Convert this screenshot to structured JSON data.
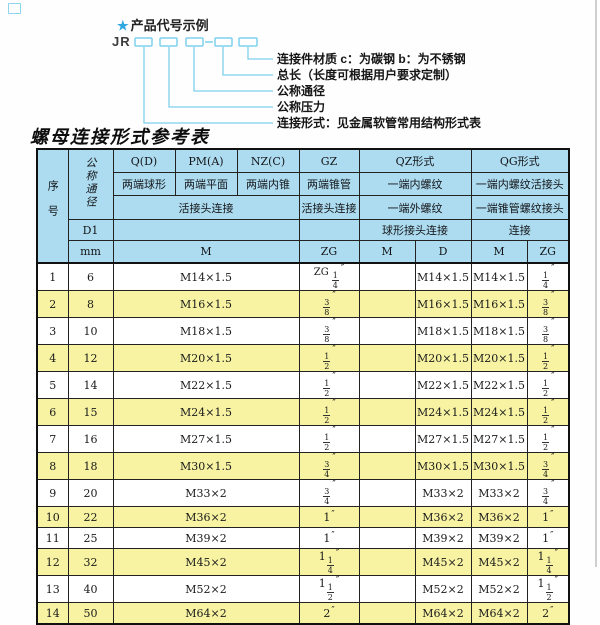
{
  "diagram": {
    "star": "★",
    "title": "产品代号示例",
    "code_prefix": "JR",
    "labels": [
      "连接件材质  c：为碳钢  b：为不锈钢",
      "总长（长度可根据用户要求定制）",
      "公称通径",
      "公称压力",
      "连接形式：见金属软管常用结构形式表"
    ]
  },
  "table": {
    "title": "螺母连接形式参考表",
    "header": {
      "seq": "序号",
      "dn": "公称通径",
      "d1": "D1",
      "mm": "mm",
      "col_q": "Q(D)",
      "col_pm": "PM(A)",
      "col_nz": "NZ(C)",
      "col_gz": "GZ",
      "col_qz": "QZ形式",
      "col_qg": "QG形式",
      "q_desc": "两端球形",
      "pm_desc": "两端平面",
      "nz_desc": "两端内锥",
      "gz_desc": "两端锥管",
      "qz_desc1": "一端内螺纹",
      "qg_desc1": "一端内螺纹活接头",
      "union_conn": "活接头连接",
      "gz_conn": "活接头连接",
      "qz_desc2": "一端外螺纹",
      "qg_desc2": "一端锥管螺纹接头",
      "qz_conn": "球形接头连接",
      "qg_conn": "连接",
      "m_main": "M",
      "zg_gz": "ZG",
      "qz_m": "M",
      "qz_d": "D",
      "qg_m": "M",
      "qg_zg": "ZG"
    },
    "rows": [
      {
        "no": "1",
        "dn": "6",
        "m": "M14×1.5",
        "gz": {
          "pre": "ZG",
          "num": "1",
          "den": "4"
        },
        "qzm": "",
        "qzd": "M14×1.5",
        "qgm": "M14×1.5",
        "qg": {
          "num": "1",
          "den": "4"
        }
      },
      {
        "no": "2",
        "dn": "8",
        "m": "M16×1.5",
        "gz": {
          "num": "3",
          "den": "8"
        },
        "qzm": "",
        "qzd": "M16×1.5",
        "qgm": "M16×1.5",
        "qg": {
          "num": "3",
          "den": "8"
        }
      },
      {
        "no": "3",
        "dn": "10",
        "m": "M18×1.5",
        "gz": {
          "num": "3",
          "den": "8"
        },
        "qzm": "",
        "qzd": "M18×1.5",
        "qgm": "M18×1.5",
        "qg": {
          "num": "3",
          "den": "8"
        }
      },
      {
        "no": "4",
        "dn": "12",
        "m": "M20×1.5",
        "gz": {
          "num": "1",
          "den": "2"
        },
        "qzm": "",
        "qzd": "M20×1.5",
        "qgm": "M20×1.5",
        "qg": {
          "num": "1",
          "den": "2"
        }
      },
      {
        "no": "5",
        "dn": "14",
        "m": "M22×1.5",
        "gz": {
          "num": "1",
          "den": "2"
        },
        "qzm": "",
        "qzd": "M22×1.5",
        "qgm": "M22×1.5",
        "qg": {
          "num": "1",
          "den": "2"
        }
      },
      {
        "no": "6",
        "dn": "15",
        "m": "M24×1.5",
        "gz": {
          "num": "1",
          "den": "2"
        },
        "qzm": "",
        "qzd": "M24×1.5",
        "qgm": "M24×1.5",
        "qg": {
          "num": "1",
          "den": "2"
        }
      },
      {
        "no": "7",
        "dn": "16",
        "m": "M27×1.5",
        "gz": {
          "num": "1",
          "den": "2"
        },
        "qzm": "",
        "qzd": "M27×1.5",
        "qgm": "M27×1.5",
        "qg": {
          "num": "1",
          "den": "2"
        }
      },
      {
        "no": "8",
        "dn": "18",
        "m": "M30×1.5",
        "gz": {
          "num": "3",
          "den": "4"
        },
        "qzm": "",
        "qzd": "M30×1.5",
        "qgm": "M30×1.5",
        "qg": {
          "num": "3",
          "den": "4"
        }
      },
      {
        "no": "9",
        "dn": "20",
        "m": "M33×2",
        "gz": {
          "num": "3",
          "den": "4"
        },
        "qzm": "",
        "qzd": "M33×2",
        "qgm": "M33×2",
        "qg": {
          "num": "3",
          "den": "4"
        }
      },
      {
        "no": "10",
        "dn": "22",
        "m": "M36×2",
        "gz": {
          "whole": "1"
        },
        "qzm": "",
        "qzd": "M36×2",
        "qgm": "M36×2",
        "qg": {
          "whole": "1"
        }
      },
      {
        "no": "11",
        "dn": "25",
        "m": "M39×2",
        "gz": {
          "whole": "1"
        },
        "qzm": "",
        "qzd": "M39×2",
        "qgm": "M39×2",
        "qg": {
          "whole": "1"
        }
      },
      {
        "no": "12",
        "dn": "32",
        "m": "M45×2",
        "gz": {
          "whole": "1",
          "num": "1",
          "den": "4"
        },
        "qzm": "",
        "qzd": "M45×2",
        "qgm": "M45×2",
        "qg": {
          "whole": "1",
          "num": "1",
          "den": "4"
        }
      },
      {
        "no": "13",
        "dn": "40",
        "m": "M52×2",
        "gz": {
          "whole": "1",
          "num": "1",
          "den": "2"
        },
        "qzm": "",
        "qzd": "M52×2",
        "qgm": "M52×2",
        "qg": {
          "whole": "1",
          "num": "1",
          "den": "2"
        }
      },
      {
        "no": "14",
        "dn": "50",
        "m": "M64×2",
        "gz": {
          "whole": "2"
        },
        "qzm": "",
        "qzd": "M64×2",
        "qgm": "M64×2",
        "qg": {
          "whole": "2"
        }
      }
    ]
  },
  "colors": {
    "header_bg": "#addcf0",
    "row_alt_bg": "#f7f3a3",
    "diagram_line_blue": "#7fd0ee",
    "star_blue": "#2fa8e0",
    "border": "#111111"
  }
}
